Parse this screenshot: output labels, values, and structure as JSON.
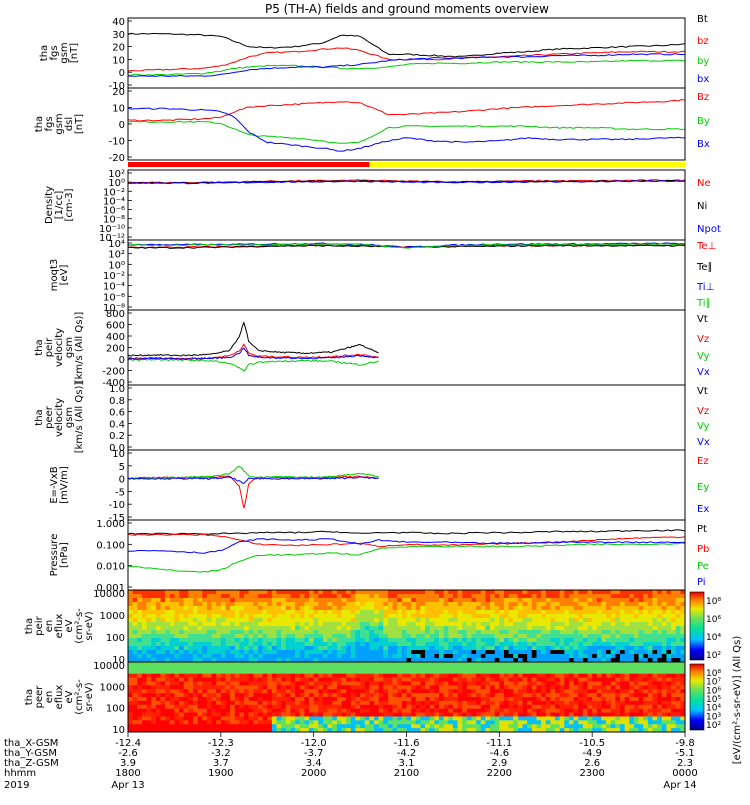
{
  "title": "P5 (TH-A) fields and ground moments overview",
  "time_axis": {
    "ticks": [
      "1800",
      "1900",
      "2000",
      "2100",
      "2200",
      "2300",
      "0000"
    ],
    "rows": [
      {
        "label": "tha_X-GSM",
        "values": [
          "-12.4",
          "-12.3",
          "-12.0",
          "-11.6",
          "-11.1",
          "-10.5",
          "-9.8"
        ]
      },
      {
        "label": "tha_Y-GSM",
        "values": [
          "-2.6",
          "-3.2",
          "-3.7",
          "-4.2",
          "-4.6",
          "-4.9",
          "-5.1"
        ]
      },
      {
        "label": "tha_Z-GSM",
        "values": [
          "3.9",
          "3.7",
          "3.4",
          "3.1",
          "2.9",
          "2.6",
          "2.3"
        ]
      },
      {
        "label": "hhmm",
        "values": [
          "1800",
          "1900",
          "2000",
          "2100",
          "2200",
          "2300",
          "0000"
        ]
      }
    ],
    "year": "2019",
    "start_date": "Apr 13",
    "end_date": "Apr 14"
  },
  "colorbar_label": "[eV/(cm²-s-sr-eV)] (All Qs)",
  "chart_data": [
    {
      "type": "line",
      "ylabel": [
        "tha",
        "fgs",
        "gsm",
        "[nT]"
      ],
      "yticks": [
        "40",
        "30",
        "20",
        "10",
        "0",
        "-10"
      ],
      "ylim": [
        -10,
        40
      ],
      "x_hours": [
        18.0,
        18.4,
        18.8,
        19.0,
        19.15,
        19.3,
        19.5,
        19.8,
        20.1,
        20.3,
        20.5,
        20.8,
        21.0,
        21.3,
        21.6,
        22.0,
        22.3,
        22.6,
        23.0,
        23.4,
        23.8,
        24.0
      ],
      "series": [
        {
          "name": "Bt",
          "color": "#000000",
          "values": [
            30,
            30,
            29,
            28,
            24,
            20,
            19,
            20,
            23,
            29,
            28,
            14,
            14,
            13,
            12,
            15,
            16,
            18,
            19,
            20,
            21,
            22
          ]
        },
        {
          "name": "bz",
          "color": "#ff0000",
          "values": [
            1,
            2,
            3,
            5,
            8,
            12,
            15,
            16,
            18,
            19,
            17,
            10,
            10,
            10,
            11,
            12,
            13,
            14,
            15,
            16,
            16,
            16
          ]
        },
        {
          "name": "by",
          "color": "#00cc00",
          "values": [
            -2,
            -2,
            -1,
            1,
            3,
            4,
            5,
            5,
            4,
            3,
            3,
            4,
            6,
            7,
            7,
            8,
            8,
            8,
            8,
            9,
            9,
            9
          ]
        },
        {
          "name": "bx",
          "color": "#0000ff",
          "values": [
            -3,
            -3,
            -3,
            -2,
            0,
            2,
            3,
            4,
            4,
            5,
            6,
            9,
            10,
            11,
            11,
            12,
            12,
            13,
            13,
            14,
            14,
            14
          ]
        }
      ]
    },
    {
      "type": "line",
      "ylabel": [
        "tha",
        "fgs",
        "gsm",
        "dsl",
        "[nT]"
      ],
      "yticks": [
        "20",
        "10",
        "0",
        "-10",
        "-20"
      ],
      "ylim": [
        -25,
        20
      ],
      "x_hours": [
        18.0,
        18.4,
        18.8,
        19.0,
        19.15,
        19.3,
        19.5,
        19.8,
        20.1,
        20.3,
        20.5,
        20.8,
        21.0,
        21.3,
        21.6,
        22.0,
        22.3,
        22.6,
        23.0,
        23.4,
        23.8,
        24.0
      ],
      "series": [
        {
          "name": "Bz",
          "color": "#ff0000",
          "values": [
            0,
            0,
            1,
            2,
            6,
            9,
            10,
            11,
            12,
            13,
            12,
            4,
            4,
            5,
            6,
            8,
            9,
            10,
            11,
            12,
            13,
            14
          ]
        },
        {
          "name": "By",
          "color": "#00cc00",
          "values": [
            -1,
            -1,
            -1,
            -2,
            -6,
            -10,
            -11,
            -12,
            -14,
            -16,
            -15,
            -5,
            -4,
            -4,
            -4,
            -4,
            -4,
            -5,
            -5,
            -6,
            -6,
            -6
          ]
        },
        {
          "name": "Bx",
          "color": "#0000ff",
          "values": [
            8,
            8,
            7,
            6,
            2,
            -8,
            -15,
            -17,
            -19,
            -21,
            -19,
            -14,
            -12,
            -14,
            -15,
            -14,
            -12,
            -13,
            -13,
            -13,
            -12,
            -12
          ]
        }
      ]
    },
    {
      "type": "line",
      "ylabel": [
        "Density",
        "[1/cc]",
        "[cm-3]"
      ],
      "yticks": [
        "10²",
        "10⁰",
        "10⁻²",
        "10⁻⁴",
        "10⁻⁶",
        "10⁻⁸",
        "10⁻¹⁰",
        "10⁻¹²"
      ],
      "log": true,
      "ylim": [
        -12,
        2
      ],
      "x_hours": [
        18.0,
        18.5,
        19.0,
        19.5,
        20.0,
        20.5,
        21.0,
        21.5,
        22.0,
        22.5,
        23.0,
        23.5,
        24.0
      ],
      "series": [
        {
          "name": "Ne",
          "color": "#ff0000",
          "values": [
            0.0,
            -0.1,
            0.0,
            0.2,
            0.3,
            0.4,
            0.2,
            0.1,
            0.2,
            0.3,
            0.3,
            0.4,
            0.4
          ]
        },
        {
          "name": "Ni",
          "color": "#000000",
          "values": [
            -0.1,
            -0.2,
            -0.1,
            0.1,
            0.2,
            0.3,
            0.1,
            0.0,
            0.1,
            0.2,
            0.2,
            0.3,
            0.3
          ]
        },
        {
          "name": "Npot",
          "color": "#0000ff",
          "values": [
            -0.2,
            -0.2,
            -0.2,
            0.0,
            0.1,
            0.2,
            0.0,
            -0.1,
            0.0,
            0.1,
            0.1,
            0.2,
            0.2
          ]
        }
      ]
    },
    {
      "type": "line",
      "ylabel": [
        "moqt3",
        "[eV]"
      ],
      "yticks": [
        "10⁴",
        "10²",
        "10⁰",
        "10⁻²",
        "10⁻⁴",
        "10⁻⁶",
        "10⁻⁸"
      ],
      "log": true,
      "ylim": [
        -8,
        4
      ],
      "x_hours": [
        18.0,
        18.5,
        19.0,
        19.5,
        20.0,
        20.5,
        21.0,
        21.5,
        22.0,
        22.5,
        23.0,
        23.5,
        24.0
      ],
      "series": [
        {
          "name": "Te⊥",
          "color": "#ff0000",
          "values": [
            3.2,
            3.2,
            3.3,
            3.4,
            3.5,
            3.5,
            3.3,
            3.4,
            3.5,
            3.5,
            3.5,
            3.6,
            3.6
          ]
        },
        {
          "name": "Te∥",
          "color": "#000000",
          "values": [
            3.1,
            3.1,
            3.2,
            3.4,
            3.5,
            3.4,
            3.2,
            3.3,
            3.4,
            3.5,
            3.5,
            3.5,
            3.5
          ]
        },
        {
          "name": "Ti⊥",
          "color": "#0000ff",
          "values": [
            3.7,
            3.7,
            3.7,
            3.8,
            3.9,
            3.8,
            3.2,
            3.6,
            3.8,
            3.8,
            3.8,
            3.9,
            3.9
          ]
        },
        {
          "name": "Ti∥",
          "color": "#00cc00",
          "values": [
            3.6,
            3.6,
            3.6,
            3.7,
            3.8,
            3.8,
            3.1,
            3.5,
            3.7,
            3.7,
            3.7,
            3.8,
            3.8
          ]
        }
      ]
    },
    {
      "type": "line",
      "ylabel": [
        "tha",
        "peir",
        "velocity",
        "gsm",
        "[km/s (All Qs)]"
      ],
      "yticks": [
        "800",
        "600",
        "400",
        "200",
        "0",
        "-200",
        "-400"
      ],
      "ylim": [
        -400,
        800
      ],
      "x_hours": [
        18.0,
        18.3,
        18.6,
        18.9,
        19.1,
        19.2,
        19.25,
        19.3,
        19.4,
        19.6,
        19.9,
        20.2,
        20.5,
        20.7
      ],
      "series": [
        {
          "name": "Vt",
          "color": "#000000",
          "values": [
            60,
            70,
            60,
            80,
            150,
            400,
            650,
            300,
            150,
            120,
            100,
            120,
            250,
            100
          ]
        },
        {
          "name": "Vz",
          "color": "#ff0000",
          "values": [
            10,
            20,
            10,
            20,
            60,
            150,
            250,
            100,
            50,
            40,
            30,
            40,
            80,
            30
          ]
        },
        {
          "name": "Vy",
          "color": "#00cc00",
          "values": [
            -20,
            -10,
            -20,
            -30,
            -80,
            -150,
            -220,
            -100,
            -60,
            -40,
            -30,
            -40,
            -100,
            -40
          ]
        },
        {
          "name": "Vx",
          "color": "#0000ff",
          "values": [
            0,
            10,
            0,
            10,
            30,
            100,
            200,
            60,
            30,
            20,
            10,
            20,
            60,
            20
          ]
        }
      ]
    },
    {
      "type": "line",
      "ylabel": [
        "tha",
        "peer",
        "velocity",
        "gsm",
        "[km/s (All Qs)]"
      ],
      "yticks": [
        "1.0",
        "0.8",
        "0.6",
        "0.4",
        "0.2",
        "0.0"
      ],
      "ylim": [
        0,
        1
      ],
      "x_hours": [],
      "series": [
        {
          "name": "Vt",
          "color": "#000000",
          "values": []
        },
        {
          "name": "Vz",
          "color": "#ff0000",
          "values": []
        },
        {
          "name": "Vy",
          "color": "#00cc00",
          "values": []
        },
        {
          "name": "Vx",
          "color": "#0000ff",
          "values": []
        }
      ]
    },
    {
      "type": "line",
      "ylabel": [
        "E=-VxB",
        "[mV/m]"
      ],
      "yticks": [
        "10",
        "5",
        "0",
        "-5",
        "-10",
        "-15"
      ],
      "ylim": [
        -15,
        10
      ],
      "x_hours": [
        18.0,
        18.3,
        18.6,
        18.9,
        19.1,
        19.2,
        19.25,
        19.3,
        19.4,
        19.6,
        19.9,
        20.2,
        20.5,
        20.7
      ],
      "series": [
        {
          "name": "Ez",
          "color": "#ff0000",
          "values": [
            0,
            0.5,
            0.3,
            0.5,
            1,
            -3,
            -12,
            -2,
            0.5,
            0.5,
            0.3,
            0.5,
            0.8,
            0.3
          ]
        },
        {
          "name": "Ey",
          "color": "#00cc00",
          "values": [
            0.2,
            0.3,
            0.5,
            0.8,
            2,
            5,
            3,
            1,
            0.5,
            0.8,
            0.5,
            0.8,
            2,
            1
          ]
        },
        {
          "name": "Ex",
          "color": "#0000ff",
          "values": [
            0,
            0,
            0,
            0,
            0.5,
            -1,
            -2,
            0,
            0,
            0,
            0,
            0,
            0.5,
            0
          ]
        }
      ]
    },
    {
      "type": "line",
      "ylabel": [
        "Pressure",
        "[nPa]"
      ],
      "yticks": [
        "1.000",
        "0.100",
        "0.010",
        "0.001"
      ],
      "log": true,
      "ylim": [
        -3,
        0
      ],
      "x_hours": [
        18.0,
        18.4,
        18.8,
        19.0,
        19.2,
        19.4,
        19.8,
        20.2,
        20.5,
        20.7,
        21.0,
        21.4,
        21.8,
        22.2,
        22.6,
        23.0,
        23.5,
        24.0
      ],
      "series": [
        {
          "name": "Pt",
          "color": "#000000",
          "values": [
            -0.5,
            -0.5,
            -0.5,
            -0.5,
            -0.5,
            -0.45,
            -0.45,
            -0.4,
            -0.5,
            -0.45,
            -0.45,
            -0.5,
            -0.45,
            -0.45,
            -0.4,
            -0.4,
            -0.35,
            -0.35
          ]
        },
        {
          "name": "Pb",
          "color": "#ff0000",
          "values": [
            -0.55,
            -0.55,
            -0.55,
            -0.6,
            -0.8,
            -1.0,
            -1.05,
            -1.0,
            -0.95,
            -1.1,
            -1.0,
            -1.05,
            -1.0,
            -0.95,
            -0.9,
            -0.8,
            -0.7,
            -0.65
          ]
        },
        {
          "name": "Pe",
          "color": "#00cc00",
          "values": [
            -2.0,
            -2.2,
            -2.3,
            -2.2,
            -1.8,
            -1.5,
            -1.5,
            -1.4,
            -1.5,
            -1.2,
            -1.1,
            -1.1,
            -1.1,
            -1.1,
            -1.05,
            -1.0,
            -1.0,
            -0.95
          ]
        },
        {
          "name": "Pi",
          "color": "#0000ff",
          "values": [
            -1.3,
            -1.3,
            -1.4,
            -1.3,
            -0.9,
            -0.75,
            -0.8,
            -0.75,
            -1.0,
            -0.8,
            -0.9,
            -0.9,
            -0.95,
            -0.95,
            -0.9,
            -0.9,
            -0.9,
            -0.9
          ]
        }
      ]
    },
    {
      "type": "heatmap",
      "ylabel": [
        "tha",
        "peir",
        "en",
        "eflux",
        "eV",
        "(cm²-s-",
        "sr-eV)"
      ],
      "yticks": [
        "10000",
        "1000",
        "100",
        "10"
      ],
      "colorbar_ticks": [
        "10⁸",
        "10⁶",
        "10⁴",
        "10²"
      ]
    },
    {
      "type": "heatmap",
      "ylabel": [
        "tha",
        "peer",
        "en",
        "eflux",
        "eV",
        "(cm²-s-",
        "sr-eV)"
      ],
      "yticks": [
        "10000",
        "1000",
        "100",
        "10"
      ],
      "colorbar_ticks": [
        "10⁸",
        "10⁷",
        "10⁶",
        "10⁵",
        "10⁴",
        "10³",
        "10²"
      ]
    }
  ]
}
